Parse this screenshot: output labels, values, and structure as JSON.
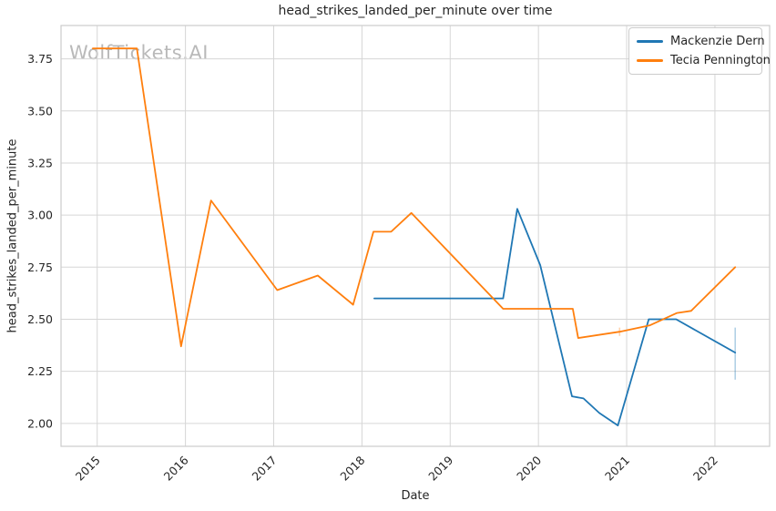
{
  "chart_data": {
    "type": "line",
    "title": "head_strikes_landed_per_minute over time",
    "xlabel": "Date",
    "ylabel": "head_strikes_landed_per_minute",
    "watermark": "WolfTickets.AI",
    "xlim": [
      2014.59,
      2022.62
    ],
    "ylim": [
      1.89,
      3.91
    ],
    "xticks": [
      "2015",
      "2016",
      "2017",
      "2018",
      "2019",
      "2020",
      "2021",
      "2022"
    ],
    "yticks": [
      "2.00",
      "2.25",
      "2.50",
      "2.75",
      "3.00",
      "3.25",
      "3.50",
      "3.75"
    ],
    "grid": true,
    "legend_position": "upper-right",
    "colors": {
      "blue": "#1f77b4",
      "orange": "#ff7f0e",
      "grid": "#d6d6d6",
      "spine": "#cccccc",
      "text": "#262626",
      "watermark": "#b9b9b9"
    },
    "series": [
      {
        "name": "Mackenzie Dern",
        "color_key": "blue",
        "x": [
          2018.14,
          2019.6,
          2019.76,
          2020.02,
          2020.38,
          2020.51,
          2020.69,
          2020.9,
          2021.25,
          2021.56,
          2022.23
        ],
        "y": [
          2.6,
          2.6,
          3.03,
          2.76,
          2.13,
          2.12,
          2.05,
          1.99,
          2.5,
          2.5,
          2.34
        ]
      },
      {
        "name": "Tecia Pennington",
        "color_key": "orange",
        "x": [
          2014.95,
          2015.45,
          2015.95,
          2016.29,
          2017.04,
          2017.5,
          2017.9,
          2018.13,
          2018.33,
          2018.56,
          2019.6,
          2020.39,
          2020.45,
          2020.92,
          2021.26,
          2021.57,
          2021.73,
          2022.23
        ],
        "y": [
          3.8,
          3.8,
          2.37,
          3.07,
          2.64,
          2.71,
          2.57,
          2.92,
          2.92,
          3.01,
          2.55,
          2.55,
          2.41,
          2.44,
          2.47,
          2.53,
          2.54,
          2.75
        ]
      }
    ],
    "error_bars": [
      {
        "series": "Mackenzie Dern",
        "x": 2022.23,
        "y_low": 2.21,
        "y_high": 2.46
      },
      {
        "series": "Tecia Pennington",
        "x": 2020.92,
        "y_low": 2.42,
        "y_high": 2.46
      }
    ]
  }
}
